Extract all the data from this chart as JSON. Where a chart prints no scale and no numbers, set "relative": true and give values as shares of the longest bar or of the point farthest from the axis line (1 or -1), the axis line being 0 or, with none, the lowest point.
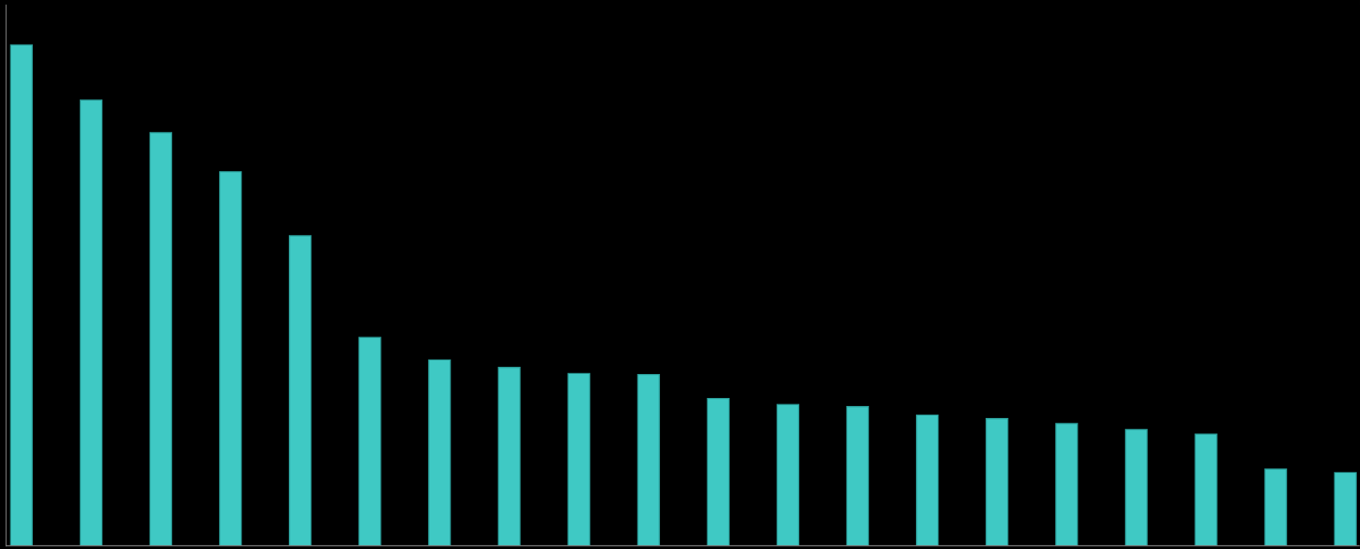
{
  "chart_data": {
    "type": "bar",
    "relative": true,
    "categories": [
      null,
      null,
      null,
      null,
      null,
      null,
      null,
      null,
      null,
      null,
      null,
      null,
      null,
      null,
      null,
      null,
      null,
      null,
      null,
      null
    ],
    "values": [
      1,
      0.89,
      0.825,
      0.747,
      0.619,
      0.416,
      0.371,
      0.356,
      0.344,
      0.342,
      0.294,
      0.282,
      0.278,
      0.261,
      0.254,
      0.244,
      0.232,
      0.223,
      0.153,
      0.146
    ],
    "color": "#3fc9c4",
    "grid": false,
    "legend": false
  }
}
